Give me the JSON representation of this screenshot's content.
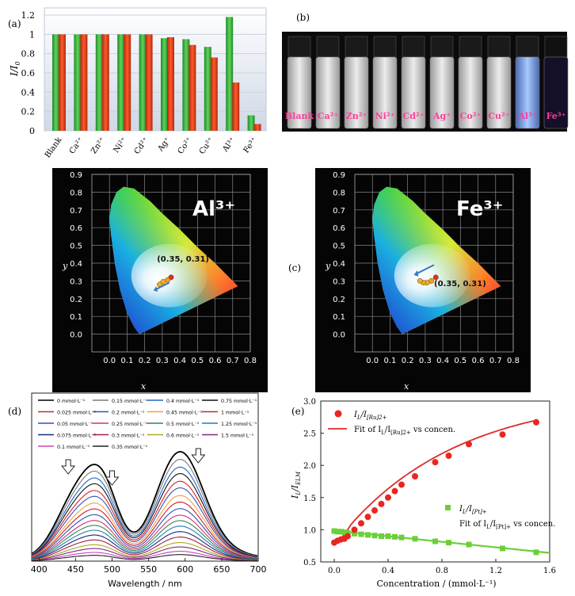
{
  "panel_labels": {
    "a": "(a)",
    "b": "(b)",
    "c": "(c)",
    "d": "(d)",
    "e": "(e)"
  },
  "colors": {
    "green": "#3cb44b",
    "red": "#e8431f",
    "blue": "#3aa6dc",
    "pink": "#ff3d9a"
  },
  "chart_data": [
    {
      "type": "bar",
      "panel": "(a)",
      "ylabel": "I/I0",
      "ylim": [
        0,
        1.2
      ],
      "yticks": [
        "0",
        "0.2",
        "0.4",
        "0.6",
        "0.8",
        "1",
        "1.2"
      ],
      "categories": [
        "Blank",
        "Ca²⁺",
        "Zn²⁺",
        "Ni²⁺",
        "Cd²⁺",
        "Ag⁺",
        "Co²⁺",
        "Cu²⁺",
        "Al³⁺",
        "Fe³⁺"
      ],
      "series": [
        {
          "values": [
            1.0,
            1.0,
            1.0,
            1.0,
            1.0,
            0.96,
            0.95,
            0.87,
            1.18,
            0.16
          ]
        },
        {
          "values": [
            1.0,
            1.0,
            1.0,
            1.0,
            1.0,
            0.97,
            0.89,
            0.76,
            0.5,
            0.07
          ]
        }
      ]
    },
    {
      "type": "image",
      "panel": "(b)",
      "vial_labels": [
        "Blank",
        "Ca²⁺",
        "Zn²⁺",
        "Ni²⁺",
        "Cd²⁺",
        "Ag⁺",
        "Co²⁺",
        "Cu²⁺",
        "Al³⁺",
        "Fe³⁺"
      ]
    },
    {
      "type": "scatter",
      "panel": "(c) left",
      "title": "Al³⁺",
      "xlabel": "x",
      "ylabel": "y",
      "xlim": [
        -0.1,
        0.8
      ],
      "ylim": [
        -0.1,
        0.9
      ],
      "xticks": [
        "0.0",
        "0.1",
        "0.2",
        "0.3",
        "0.4",
        "0.5",
        "0.6",
        "0.7",
        "0.8"
      ],
      "yticks": [
        "0.0",
        "0.1",
        "0.2",
        "0.3",
        "0.4",
        "0.5",
        "0.6",
        "0.7",
        "0.8",
        "0.9"
      ],
      "annotation": "(0.35, 0.31)",
      "points": [
        {
          "x": 0.35,
          "y": 0.32
        },
        {
          "x": 0.33,
          "y": 0.305
        },
        {
          "x": 0.305,
          "y": 0.295
        },
        {
          "x": 0.285,
          "y": 0.28
        }
      ]
    },
    {
      "type": "scatter",
      "panel": "(c) right",
      "title": "Fe³⁺",
      "xlabel": "x",
      "ylabel": "y",
      "xlim": [
        -0.1,
        0.8
      ],
      "ylim": [
        -0.1,
        0.9
      ],
      "xticks": [
        "0.0",
        "0.1",
        "0.2",
        "0.3",
        "0.4",
        "0.5",
        "0.6",
        "0.7",
        "0.8"
      ],
      "yticks": [
        "0.0",
        "0.1",
        "0.2",
        "0.3",
        "0.4",
        "0.5",
        "0.6",
        "0.7",
        "0.8",
        "0.9"
      ],
      "annotation": "(0.35, 0.31)",
      "points": [
        {
          "x": 0.36,
          "y": 0.32
        },
        {
          "x": 0.335,
          "y": 0.3
        },
        {
          "x": 0.31,
          "y": 0.29
        },
        {
          "x": 0.29,
          "y": 0.29
        },
        {
          "x": 0.27,
          "y": 0.3
        }
      ]
    },
    {
      "type": "line",
      "panel": "(d)",
      "xlabel": "Wavelength / nm",
      "xlim": [
        390,
        700
      ],
      "xticks": [
        "400",
        "450",
        "500",
        "550",
        "600",
        "650",
        "700"
      ],
      "legend": [
        "0 mmol·L⁻¹",
        "0.15 mmol·L⁻¹",
        "0.4 mmol·L⁻¹",
        "0.75 mmol·L⁻¹",
        "0.025 mmol·L⁻¹",
        "0.2 mmol·L⁻¹",
        "0.45 mmol·L⁻¹",
        "1 mmol·L⁻¹",
        "0.05 mmol·L⁻¹",
        "0.25 mmol·L⁻¹",
        "0.5 mmol·L⁻¹",
        "1.25 mmol·L⁻¹",
        "0.075 mmol·L⁻¹",
        "0.3 mmol·L⁻¹",
        "0.6 mmol·L⁻¹",
        "1.5 mmol·L⁻¹",
        "0.1 mmol·L⁻¹",
        "0.35 mmol·L⁻¹"
      ],
      "legend_colors": [
        "#000000",
        "#7a7a7a",
        "#2266cc",
        "#111111",
        "#e02020",
        "#3a4fb5",
        "#f0a040",
        "#cc2222",
        "#3050c0",
        "#cc3377",
        "#2a8a4a",
        "#2a7ab0",
        "#1a2a80",
        "#a02040",
        "#aaaa22",
        "#7a2a7a",
        "#d040c0",
        "#222222"
      ],
      "peak_heights": [
        1.0,
        0.93,
        0.86,
        0.8,
        0.73,
        0.67,
        0.6,
        0.54,
        0.48,
        0.42,
        0.37,
        0.32,
        0.27,
        0.22,
        0.17,
        0.13,
        0.09,
        0.06
      ]
    },
    {
      "type": "scatter",
      "panel": "(e)",
      "xlabel": "Concentration / (mmol·L⁻¹)",
      "ylabel": "IL/IELM",
      "xlim": [
        -0.1,
        1.6
      ],
      "ylim": [
        0.5,
        3.0
      ],
      "xticks": [
        "0.0",
        "0.4",
        "0.8",
        "1.2",
        "1.6"
      ],
      "yticks": [
        "0.5",
        "1.0",
        "1.5",
        "2.0",
        "2.5",
        "3.0"
      ],
      "series": [
        {
          "name": "IL/I[Ru]2+",
          "color": "#e8261f",
          "marker": "circle",
          "x": [
            0.0,
            0.025,
            0.05,
            0.075,
            0.1,
            0.15,
            0.2,
            0.25,
            0.3,
            0.35,
            0.4,
            0.45,
            0.5,
            0.6,
            0.75,
            0.85,
            1.0,
            1.25,
            1.5
          ],
          "y": [
            0.8,
            0.83,
            0.85,
            0.86,
            0.9,
            1.0,
            1.1,
            1.2,
            1.3,
            1.4,
            1.5,
            1.6,
            1.7,
            1.83,
            2.05,
            2.15,
            2.33,
            2.48,
            2.67
          ]
        },
        {
          "name": "Fit of IL/I[Ru]2+ vs concen.",
          "color": "#e02a2a",
          "marker": "line"
        },
        {
          "name": "IL/I[Pt]+",
          "color": "#6ccf3a",
          "marker": "square",
          "x": [
            0.0,
            0.025,
            0.05,
            0.075,
            0.1,
            0.15,
            0.2,
            0.25,
            0.3,
            0.35,
            0.4,
            0.45,
            0.5,
            0.6,
            0.75,
            0.85,
            1.0,
            1.25,
            1.5
          ],
          "y": [
            0.98,
            0.97,
            0.97,
            0.96,
            0.95,
            0.94,
            0.93,
            0.92,
            0.91,
            0.9,
            0.9,
            0.89,
            0.88,
            0.86,
            0.82,
            0.8,
            0.77,
            0.71,
            0.65
          ]
        },
        {
          "name": "Fit of IL/I[Pt]+ vs concen.",
          "color": "#6ccf3a",
          "marker": "line"
        }
      ],
      "legend_text": {
        "ru_points": "I",
        "ru_points_sub1": "L",
        "ru_points_mid": "/I",
        "ru_points_sub2": "[Ru]2+",
        "ru_fit_prefix": "Fit of I",
        "ru_fit_sub1": "L",
        "ru_fit_mid": "/I",
        "ru_fit_sub2": "[Ru]2+",
        "ru_fit_suffix": " vs concen.",
        "pt_points": "I",
        "pt_points_sub1": "L",
        "pt_points_mid": "/I",
        "pt_points_sub2": "[Pt]+",
        "pt_fit_prefix": "Fit of I",
        "pt_fit_sub1": "L",
        "pt_fit_mid": "/I",
        "pt_fit_sub2": "[Pt]+",
        "pt_fit_suffix": " vs concen."
      }
    }
  ]
}
